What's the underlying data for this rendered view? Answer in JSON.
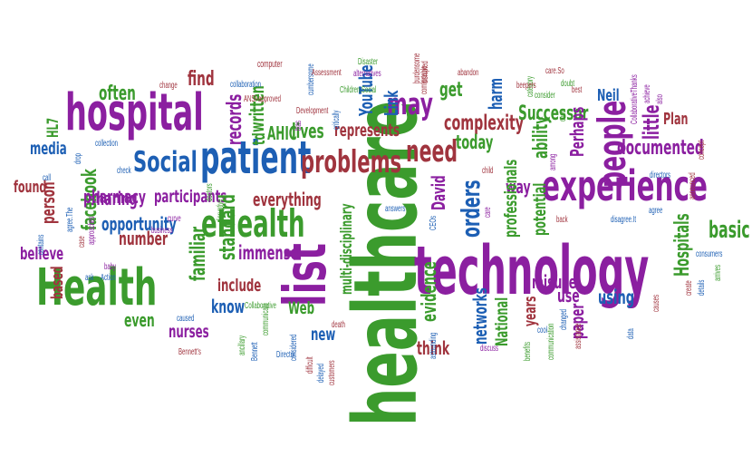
{
  "colors": {
    "purple": "#8b1fa0",
    "green": "#3b9b2d",
    "blue": "#1d5fb4",
    "brown": "#a0343e",
    "teal": "#1f8fa8",
    "pink": "#c23b7a",
    "orange": "#c87a1e",
    "olive": "#6f7d2a",
    "navy": "#294d93"
  },
  "words": [
    {
      "text": "healthcare",
      "color": "green"
    },
    {
      "text": "technology",
      "color": "purple"
    },
    {
      "text": "Health",
      "color": "green"
    },
    {
      "text": "hospital",
      "color": "purple"
    },
    {
      "text": "experience",
      "color": "purple"
    },
    {
      "text": "list",
      "color": "purple"
    },
    {
      "text": "patient",
      "color": "blue"
    },
    {
      "text": "eHealth",
      "color": "green"
    },
    {
      "text": "Social",
      "color": "blue"
    },
    {
      "text": "problems",
      "color": "brown"
    },
    {
      "text": "need",
      "color": "brown"
    },
    {
      "text": "may",
      "color": "purple"
    },
    {
      "text": "people",
      "color": "purple"
    },
    {
      "text": "documented",
      "color": "purple"
    },
    {
      "text": "orders",
      "color": "blue"
    },
    {
      "text": "complexity",
      "color": "brown"
    },
    {
      "text": "Successor",
      "color": "green"
    },
    {
      "text": "Neil",
      "color": "blue"
    },
    {
      "text": "Plan",
      "color": "brown"
    },
    {
      "text": "little",
      "color": "purple"
    },
    {
      "text": "basic",
      "color": "green"
    },
    {
      "text": "Hospitals",
      "color": "green"
    },
    {
      "text": "often",
      "color": "green"
    },
    {
      "text": "find",
      "color": "brown"
    },
    {
      "text": "media",
      "color": "blue"
    },
    {
      "text": "sharing",
      "color": "purple"
    },
    {
      "text": "found",
      "color": "brown"
    },
    {
      "text": "facebook",
      "color": "green"
    },
    {
      "text": "pharmacy",
      "color": "purple"
    },
    {
      "text": "participants",
      "color": "purple"
    },
    {
      "text": "everything",
      "color": "brown"
    },
    {
      "text": "opportunity",
      "color": "blue"
    },
    {
      "text": "believe",
      "color": "purple"
    },
    {
      "text": "number",
      "color": "brown"
    },
    {
      "text": "based",
      "color": "brown"
    },
    {
      "text": "person",
      "color": "brown"
    },
    {
      "text": "familiar",
      "color": "green"
    },
    {
      "text": "standard",
      "color": "green"
    },
    {
      "text": "immense",
      "color": "purple"
    },
    {
      "text": "include",
      "color": "brown"
    },
    {
      "text": "know",
      "color": "blue"
    },
    {
      "text": "nurses",
      "color": "purple"
    },
    {
      "text": "even",
      "color": "green"
    },
    {
      "text": "records",
      "color": "purple"
    },
    {
      "text": "written",
      "color": "green"
    },
    {
      "text": "AHIC",
      "color": "green"
    },
    {
      "text": "lives",
      "color": "green"
    },
    {
      "text": "YouTube",
      "color": "blue"
    },
    {
      "text": "Link",
      "color": "blue"
    },
    {
      "text": "represents",
      "color": "brown"
    },
    {
      "text": "get",
      "color": "green"
    },
    {
      "text": "harm",
      "color": "blue"
    },
    {
      "text": "today",
      "color": "green"
    },
    {
      "text": "David",
      "color": "purple"
    },
    {
      "text": "way",
      "color": "purple"
    },
    {
      "text": "ability",
      "color": "green"
    },
    {
      "text": "Perhaps",
      "color": "purple"
    },
    {
      "text": "potential",
      "color": "green"
    },
    {
      "text": "professionals",
      "color": "green"
    },
    {
      "text": "evidence",
      "color": "green"
    },
    {
      "text": "networks",
      "color": "blue"
    },
    {
      "text": "National",
      "color": "green"
    },
    {
      "text": "years",
      "color": "brown"
    },
    {
      "text": "misuse",
      "color": "purple"
    },
    {
      "text": "use",
      "color": "purple"
    },
    {
      "text": "using",
      "color": "blue"
    },
    {
      "text": "paper",
      "color": "purple"
    },
    {
      "text": "think",
      "color": "brown"
    },
    {
      "text": "new",
      "color": "blue"
    },
    {
      "text": "Web",
      "color": "green"
    },
    {
      "text": "multi-disciplinary",
      "color": "green"
    },
    {
      "text": "HL7",
      "color": "green"
    },
    {
      "text": "td",
      "color": "green"
    },
    {
      "text": "computer",
      "color": "brown"
    },
    {
      "text": "cumbersome",
      "color": "blue"
    },
    {
      "text": "Assessment",
      "color": "brown"
    },
    {
      "text": "Disaster",
      "color": "green"
    },
    {
      "text": "alternatives",
      "color": "purple"
    },
    {
      "text": "burdensome",
      "color": "brown"
    },
    {
      "text": "comfortable",
      "color": "brown"
    },
    {
      "text": "abandon",
      "color": "brown"
    },
    {
      "text": "care.So",
      "color": "brown"
    },
    {
      "text": "doubt",
      "color": "green"
    },
    {
      "text": "best",
      "color": "brown"
    },
    {
      "text": "Children.Social",
      "color": "green"
    },
    {
      "text": "ANSI-approved",
      "color": "brown"
    },
    {
      "text": "Development",
      "color": "brown"
    },
    {
      "text": "collaboration",
      "color": "blue"
    },
    {
      "text": "change",
      "color": "brown"
    },
    {
      "text": "collection",
      "color": "blue"
    },
    {
      "text": "Collaborative",
      "color": "green"
    },
    {
      "text": "ancillary",
      "color": "green"
    },
    {
      "text": "Bennett's",
      "color": "brown"
    },
    {
      "text": "Bennett",
      "color": "blue"
    },
    {
      "text": "Director",
      "color": "blue"
    },
    {
      "text": "considered",
      "color": "blue"
    },
    {
      "text": "communicate",
      "color": "green"
    },
    {
      "text": "caused",
      "color": "blue"
    },
    {
      "text": "business",
      "color": "purple"
    },
    {
      "text": "curve",
      "color": "purple"
    },
    {
      "text": "baby",
      "color": "purple"
    },
    {
      "text": "Action",
      "color": "blue"
    },
    {
      "text": "ask",
      "color": "blue"
    },
    {
      "text": "approaches",
      "color": "purple"
    },
    {
      "text": "agree.The",
      "color": "blue"
    },
    {
      "text": "contains",
      "color": "blue"
    },
    {
      "text": "case",
      "color": "brown"
    },
    {
      "text": "call",
      "color": "blue"
    },
    {
      "text": "drop",
      "color": "blue"
    },
    {
      "text": "check",
      "color": "blue"
    },
    {
      "text": "disruptive",
      "color": "green"
    },
    {
      "text": "doctors",
      "color": "green"
    },
    {
      "text": "critically",
      "color": "blue"
    },
    {
      "text": "bias",
      "color": "purple"
    },
    {
      "text": "answers",
      "color": "blue"
    },
    {
      "text": "CEOs",
      "color": "blue"
    },
    {
      "text": "child",
      "color": "brown"
    },
    {
      "text": "care",
      "color": "purple"
    },
    {
      "text": "death",
      "color": "brown"
    },
    {
      "text": "difficult",
      "color": "brown"
    },
    {
      "text": "delayed",
      "color": "blue"
    },
    {
      "text": "customers",
      "color": "brown"
    },
    {
      "text": "astounding",
      "color": "blue"
    },
    {
      "text": "discuss",
      "color": "purple"
    },
    {
      "text": "benefits",
      "color": "green"
    },
    {
      "text": "communication",
      "color": "green"
    },
    {
      "text": "cool",
      "color": "blue"
    },
    {
      "text": "changed",
      "color": "blue"
    },
    {
      "text": "assistance",
      "color": "brown"
    },
    {
      "text": "back",
      "color": "brown"
    },
    {
      "text": "disagree.It",
      "color": "blue"
    },
    {
      "text": "agree",
      "color": "blue"
    },
    {
      "text": "consumers",
      "color": "blue"
    },
    {
      "text": "arrives",
      "color": "green"
    },
    {
      "text": "details",
      "color": "blue"
    },
    {
      "text": "create",
      "color": "brown"
    },
    {
      "text": "causes",
      "color": "brown"
    },
    {
      "text": "data",
      "color": "blue"
    },
    {
      "text": "announced",
      "color": "brown"
    },
    {
      "text": "directors",
      "color": "blue"
    },
    {
      "text": "concept",
      "color": "brown"
    },
    {
      "text": "among",
      "color": "purple"
    },
    {
      "text": "cost",
      "color": "green"
    },
    {
      "text": "category",
      "color": "green"
    },
    {
      "text": "beepers",
      "color": "brown"
    },
    {
      "text": "consider",
      "color": "green"
    },
    {
      "text": "CollaborativeThanks",
      "color": "purple"
    },
    {
      "text": "achieve",
      "color": "purple"
    },
    {
      "text": "also",
      "color": "purple"
    },
    {
      "text": "disrupted",
      "color": "brown"
    }
  ]
}
